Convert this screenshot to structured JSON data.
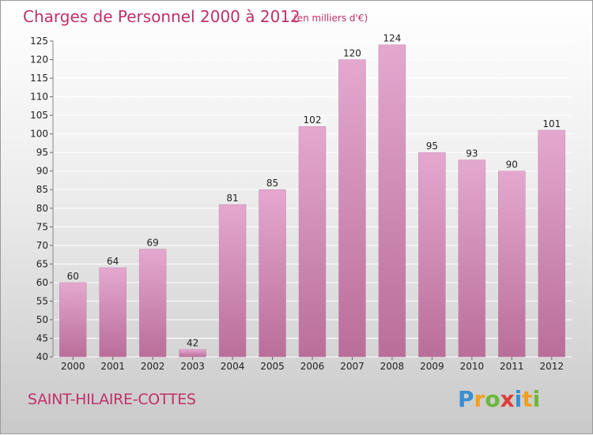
{
  "chart_data": {
    "type": "bar",
    "title": "Charges de Personnel 2000 à 2012",
    "subtitle": "(en milliers d'€)",
    "categories": [
      "2000",
      "2001",
      "2002",
      "2003",
      "2004",
      "2005",
      "2006",
      "2007",
      "2008",
      "2009",
      "2010",
      "2011",
      "2012"
    ],
    "values": [
      60,
      64,
      69,
      42,
      81,
      85,
      102,
      120,
      124,
      95,
      93,
      90,
      101
    ],
    "ylim": [
      40,
      125
    ],
    "yticks": [
      40,
      45,
      50,
      55,
      60,
      65,
      70,
      75,
      80,
      85,
      90,
      95,
      100,
      105,
      110,
      115,
      120,
      125
    ],
    "grid": true,
    "xlabel": "",
    "ylabel": ""
  },
  "commune": "SAINT-HILAIRE-COTTES",
  "brand": {
    "letters": [
      "P",
      "r",
      "o",
      "x",
      "i",
      "t",
      "i"
    ],
    "colors": [
      "#3a8fd0",
      "#f0a020",
      "#6bb83a",
      "#e03a3a",
      "#3a8fd0",
      "#f0a020",
      "#6bb83a"
    ]
  },
  "colors": {
    "bar_top": "#e4a8cf",
    "bar_bottom": "#b96e98",
    "title": "#c0306a"
  }
}
